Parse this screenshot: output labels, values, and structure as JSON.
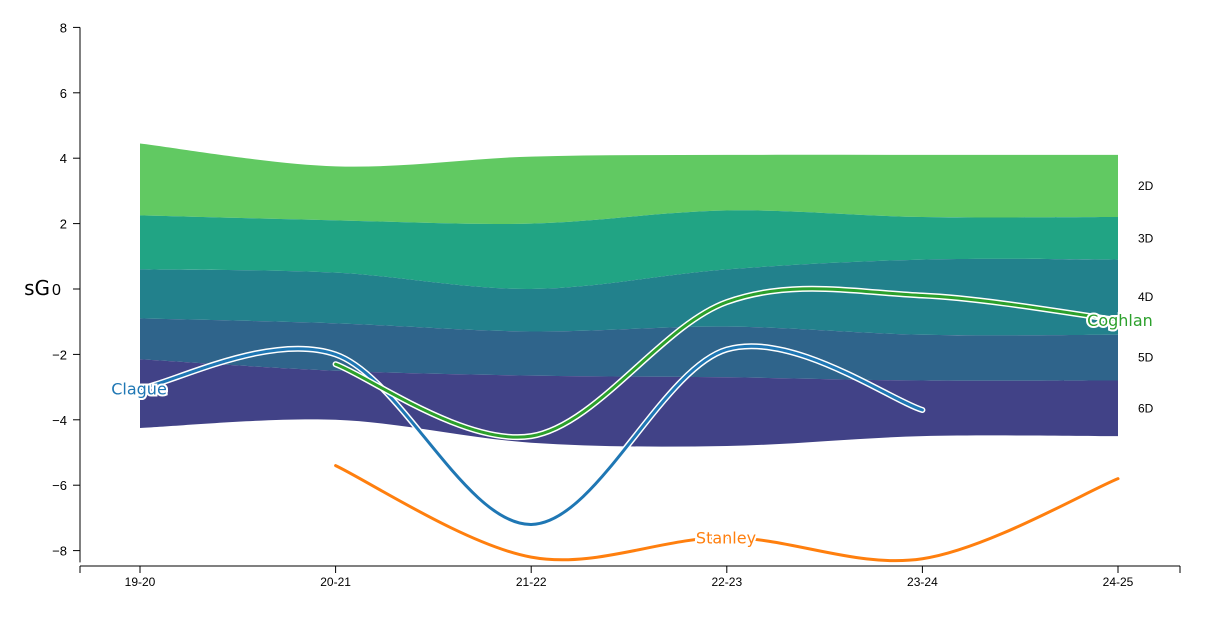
{
  "chart_data": {
    "type": "area",
    "ylabel": "sG",
    "x_categories": [
      "19-20",
      "20-21",
      "21-22",
      "22-23",
      "23-24",
      "24-25"
    ],
    "yticks": [
      8,
      6,
      4,
      2,
      0,
      -2,
      -4,
      -6,
      -8
    ],
    "ytick_labels": [
      "8",
      "6",
      "4",
      "2",
      "0",
      "−2",
      "−4",
      "−6",
      "−8"
    ],
    "ylim": [
      -8.3,
      8
    ],
    "band_boundaries": [
      {
        "values": [
          4.45,
          3.75,
          4.05,
          4.1,
          4.1,
          4.1
        ]
      },
      {
        "values": [
          2.25,
          2.1,
          2.0,
          2.4,
          2.2,
          2.2
        ]
      },
      {
        "values": [
          0.6,
          0.5,
          0.0,
          0.6,
          0.9,
          0.9
        ]
      },
      {
        "values": [
          -0.9,
          -1.05,
          -1.3,
          -1.15,
          -1.4,
          -1.4
        ]
      },
      {
        "values": [
          -2.15,
          -2.5,
          -2.65,
          -2.7,
          -2.8,
          -2.8
        ]
      },
      {
        "values": [
          -4.25,
          -4.0,
          -4.7,
          -4.8,
          -4.5,
          -4.5
        ]
      }
    ],
    "bands": [
      {
        "name": "2D",
        "color": "#61c962"
      },
      {
        "name": "3D",
        "color": "#21a484"
      },
      {
        "name": "4D",
        "color": "#22818c"
      },
      {
        "name": "5D",
        "color": "#2f648b"
      },
      {
        "name": "6D",
        "color": "#414287"
      }
    ],
    "series": [
      {
        "name": "Clague",
        "color": "#1f77b4",
        "values": [
          -3.05,
          -2.0,
          -7.2,
          -1.85,
          -3.7,
          null
        ]
      },
      {
        "name": "Coghlan",
        "color": "#2ca02c",
        "values": [
          null,
          -2.3,
          -4.5,
          -0.4,
          -0.2,
          -0.95
        ]
      },
      {
        "name": "Stanley",
        "color": "#ff7f0e",
        "values": [
          null,
          -5.4,
          -8.2,
          -7.6,
          -8.25,
          -5.8
        ]
      }
    ]
  }
}
